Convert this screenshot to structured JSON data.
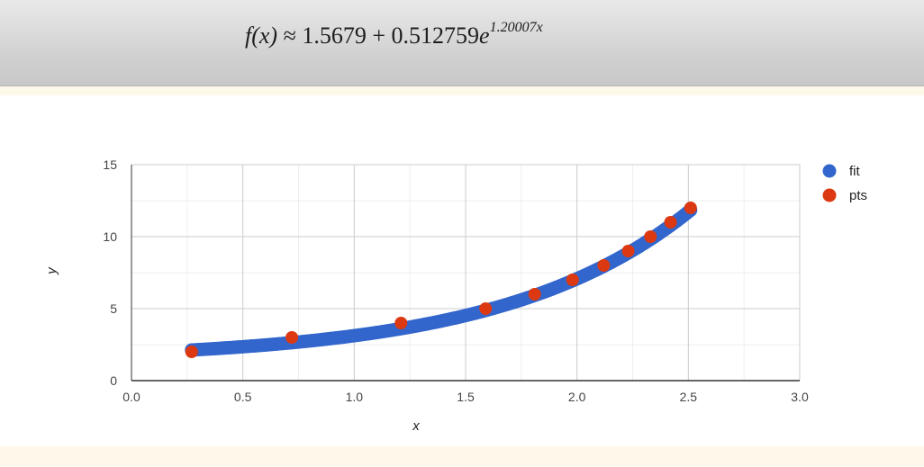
{
  "header": {
    "formula_lhs": "f(x)",
    "formula_approx": "≈",
    "formula_constant": "1.5679",
    "formula_plus": "+",
    "formula_coef": "0.512759",
    "formula_base": "e",
    "formula_exponent": "1.20007x"
  },
  "chart_data": {
    "type": "scatter",
    "xlabel": "x",
    "ylabel": "y",
    "xlim": [
      0.0,
      3.0
    ],
    "ylim": [
      0,
      15
    ],
    "x_ticks": [
      "0.0",
      "0.5",
      "1.0",
      "1.5",
      "2.0",
      "2.5",
      "3.0"
    ],
    "y_ticks": [
      "0",
      "5",
      "10",
      "15"
    ],
    "grid": true,
    "legend_position": "right",
    "fit": {
      "a": 1.5679,
      "b": 0.512759,
      "c": 1.20007,
      "x_range": [
        0.27,
        2.51
      ]
    },
    "series": [
      {
        "name": "fit",
        "color": "#3366cc",
        "x": [
          0.27,
          0.5,
          0.75,
          1.0,
          1.25,
          1.5,
          1.75,
          2.0,
          2.25,
          2.5,
          2.51
        ],
        "y": [
          2.27,
          2.49,
          2.83,
          3.27,
          3.85,
          4.6,
          5.6,
          6.91,
          8.62,
          10.87,
          10.99
        ]
      },
      {
        "name": "pts",
        "color": "#dc3912",
        "x": [
          0.27,
          0.72,
          1.21,
          1.59,
          1.81,
          1.98,
          2.12,
          2.23,
          2.33,
          2.42,
          2.51
        ],
        "y": [
          2,
          3,
          4,
          5,
          6,
          7,
          8,
          9,
          10,
          11,
          12
        ]
      }
    ]
  }
}
